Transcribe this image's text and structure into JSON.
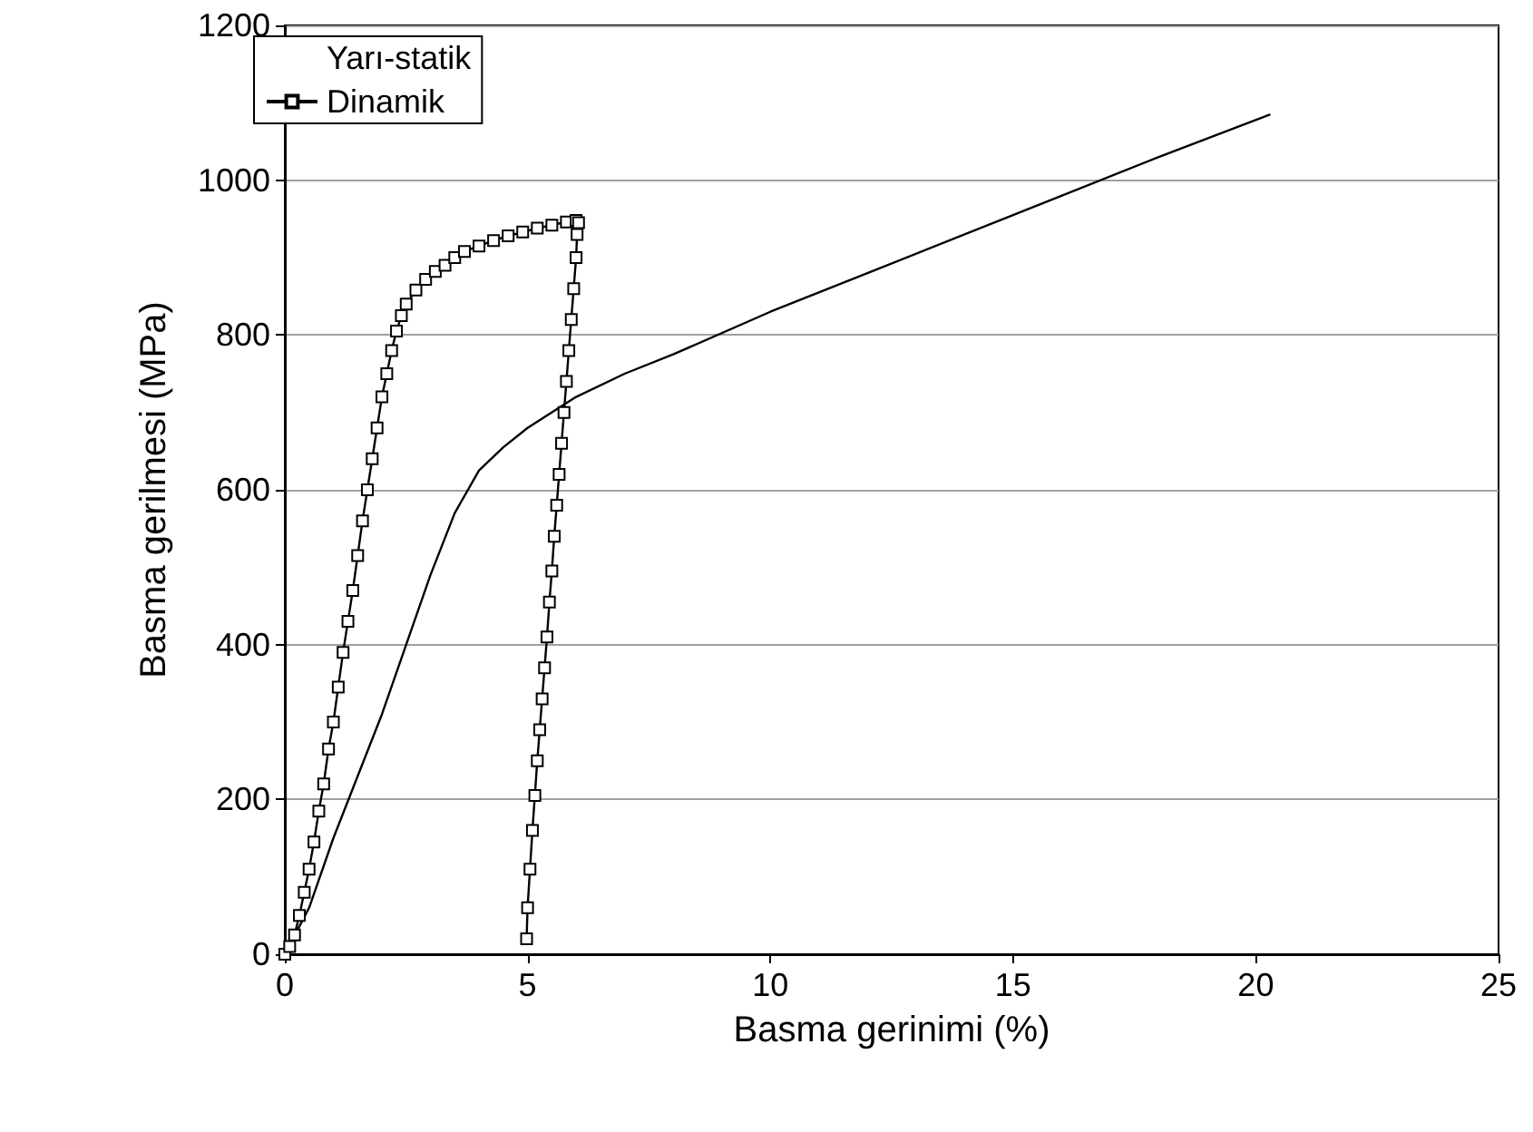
{
  "chart_data": {
    "type": "line",
    "xlabel": "Basma gerinimi (%)",
    "ylabel": "Basma gerilmesi (MPa)",
    "xlim": [
      0,
      25
    ],
    "xticks": [
      0,
      5,
      10,
      15,
      20,
      25
    ],
    "ylim": [
      0,
      1200
    ],
    "yticks": [
      0,
      200,
      400,
      600,
      800,
      1000,
      1200
    ],
    "grid": "y",
    "legend": "top left",
    "series": [
      {
        "name": "Yarı-statik",
        "color": "#000000",
        "marker": "none",
        "x": [
          0,
          0.5,
          1,
          1.5,
          2,
          2.5,
          3,
          3.5,
          4,
          4.5,
          5,
          6,
          7,
          8,
          10,
          12,
          15,
          18,
          20.3
        ],
        "values": [
          0,
          60,
          150,
          230,
          310,
          400,
          490,
          570,
          625,
          655,
          680,
          720,
          750,
          775,
          830,
          880,
          955,
          1030,
          1085
        ]
      },
      {
        "name": "Dinamik",
        "color": "#000000",
        "marker": "square",
        "x": [
          0,
          0.1,
          0.2,
          0.3,
          0.4,
          0.5,
          0.6,
          0.7,
          0.8,
          0.9,
          1,
          1.1,
          1.2,
          1.3,
          1.4,
          1.5,
          1.6,
          1.7,
          1.8,
          1.9,
          2,
          2.1,
          2.2,
          2.3,
          2.4,
          2.5,
          2.7,
          2.9,
          3.1,
          3.3,
          3.5,
          3.7,
          4,
          4.3,
          4.6,
          4.9,
          5.2,
          5.5,
          5.8,
          6,
          6.05,
          6.02,
          6,
          5.95,
          5.9,
          5.85,
          5.8,
          5.75,
          5.7,
          5.65,
          5.6,
          5.55,
          5.5,
          5.45,
          5.4,
          5.35,
          5.3,
          5.25,
          5.2,
          5.15,
          5.1,
          5.05,
          5,
          4.98
        ],
        "values": [
          0,
          10,
          25,
          50,
          80,
          110,
          145,
          185,
          220,
          265,
          300,
          345,
          390,
          430,
          470,
          515,
          560,
          600,
          640,
          680,
          720,
          750,
          780,
          805,
          825,
          840,
          858,
          872,
          882,
          890,
          900,
          908,
          915,
          922,
          928,
          933,
          938,
          942,
          946,
          948,
          945,
          930,
          900,
          860,
          820,
          780,
          740,
          700,
          660,
          620,
          580,
          540,
          495,
          455,
          410,
          370,
          330,
          290,
          250,
          205,
          160,
          110,
          60,
          20
        ]
      }
    ]
  }
}
